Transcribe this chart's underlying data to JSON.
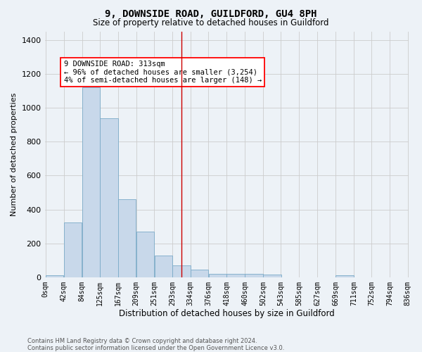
{
  "title": "9, DOWNSIDE ROAD, GUILDFORD, GU4 8PH",
  "subtitle": "Size of property relative to detached houses in Guildford",
  "xlabel": "Distribution of detached houses by size in Guildford",
  "ylabel": "Number of detached properties",
  "bar_color": "#c8d8ea",
  "bar_edge_color": "#7aaac8",
  "background_color": "#edf2f7",
  "annotation_text": "9 DOWNSIDE ROAD: 313sqm\n← 96% of detached houses are smaller (3,254)\n4% of semi-detached houses are larger (148) →",
  "vline_x": 313,
  "vline_color": "#cc0000",
  "bins_left": [
    0,
    42,
    84,
    125,
    167,
    209,
    251,
    293,
    334,
    376,
    418,
    460,
    502,
    543,
    585,
    627,
    669,
    711,
    752,
    794
  ],
  "bin_width": 42,
  "bin_labels": [
    "0sqm",
    "42sqm",
    "84sqm",
    "125sqm",
    "167sqm",
    "209sqm",
    "251sqm",
    "293sqm",
    "334sqm",
    "376sqm",
    "418sqm",
    "460sqm",
    "502sqm",
    "543sqm",
    "585sqm",
    "627sqm",
    "669sqm",
    "711sqm",
    "752sqm",
    "794sqm",
    "836sqm"
  ],
  "heights": [
    10,
    325,
    1120,
    940,
    460,
    270,
    130,
    70,
    45,
    20,
    22,
    22,
    15,
    0,
    0,
    0,
    12,
    0,
    0,
    0
  ],
  "ylim": [
    0,
    1450
  ],
  "yticks": [
    0,
    200,
    400,
    600,
    800,
    1000,
    1200,
    1400
  ],
  "footer": "Contains HM Land Registry data © Crown copyright and database right 2024.\nContains public sector information licensed under the Open Government Licence v3.0.",
  "grid_color": "#cccccc",
  "title_fontsize": 10,
  "subtitle_fontsize": 8.5,
  "ylabel_fontsize": 8,
  "xlabel_fontsize": 8.5,
  "tick_fontsize": 7,
  "annotation_fontsize": 7.5,
  "footer_fontsize": 6
}
